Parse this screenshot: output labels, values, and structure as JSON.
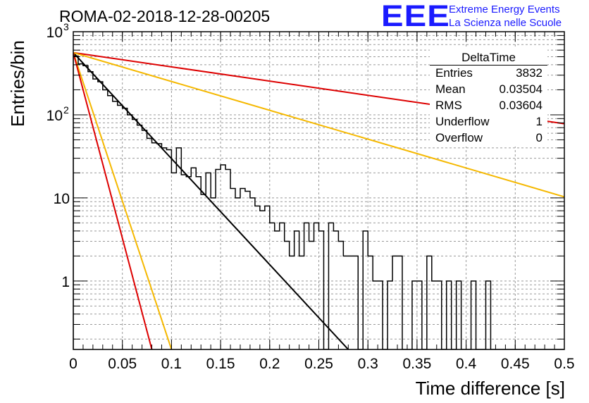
{
  "header": {
    "title": "ROMA-02-2018-12-28-00205",
    "logo_text": "EEE",
    "org_line1": "Extreme Energy Events",
    "org_line2": "La Scienza nelle Scuole",
    "logo_color": "#1a1aff"
  },
  "stats_box": {
    "title": "DeltaTime",
    "rows": [
      {
        "key": "Entries",
        "value": "3832"
      },
      {
        "key": "Mean",
        "value": "0.03504"
      },
      {
        "key": "RMS",
        "value": "0.03604"
      },
      {
        "key": "Underflow",
        "value": "1"
      },
      {
        "key": "Overflow",
        "value": "0"
      }
    ]
  },
  "chart_data": {
    "type": "bar",
    "title": "ROMA-02-2018-12-28-00205",
    "xlabel": "Time difference [s]",
    "ylabel": "Entries/bin",
    "xlim": [
      0,
      0.5
    ],
    "ylim": [
      0.15,
      1000
    ],
    "yscale": "log",
    "grid": true,
    "bin_width": 0.005,
    "bin_start": 0,
    "x_ticks": [
      "0",
      "0.05",
      "0.1",
      "0.15",
      "0.2",
      "0.25",
      "0.3",
      "0.35",
      "0.4",
      "0.45",
      "0.5"
    ],
    "x_tick_values": [
      0,
      0.05,
      0.1,
      0.15,
      0.2,
      0.25,
      0.3,
      0.35,
      0.4,
      0.45,
      0.5
    ],
    "y_ticks": [
      {
        "value": 1,
        "label": "1"
      },
      {
        "value": 10,
        "label": "10"
      },
      {
        "value": 100,
        "label": "10",
        "exp": "2"
      },
      {
        "value": 1000,
        "label": "10",
        "exp": "3"
      }
    ],
    "histogram": [
      510,
      410,
      390,
      330,
      270,
      250,
      200,
      170,
      145,
      130,
      120,
      100,
      88,
      75,
      65,
      52,
      46,
      45,
      40,
      38,
      20,
      40,
      19,
      18,
      23,
      18,
      11,
      20,
      10,
      22,
      25,
      22,
      13,
      10,
      13,
      12,
      10,
      8,
      7,
      8,
      5,
      4,
      5,
      3,
      2,
      4,
      2,
      5,
      3,
      5,
      4,
      0,
      5,
      4,
      3,
      2,
      2,
      2,
      0,
      4,
      2,
      1,
      1,
      0,
      1,
      2,
      2,
      0,
      0,
      1,
      1,
      0,
      2,
      1,
      1,
      0,
      1,
      0,
      1,
      0,
      0,
      1,
      0,
      0,
      1,
      0,
      0,
      0,
      0,
      0,
      0,
      0,
      0,
      0,
      0,
      0,
      0,
      0,
      0,
      0
    ],
    "curves": [
      {
        "color": "#000000",
        "points": [
          [
            0,
            560
          ],
          [
            0.28,
            0.15
          ]
        ]
      },
      {
        "color": "#dd0000",
        "points": [
          [
            0,
            560
          ],
          [
            0.5,
            78
          ]
        ]
      },
      {
        "color": "#f5b800",
        "points": [
          [
            0,
            560
          ],
          [
            0.5,
            10.3
          ]
        ]
      },
      {
        "color": "#f5b800",
        "points": [
          [
            0,
            560
          ],
          [
            0.1,
            0.15
          ]
        ]
      },
      {
        "color": "#dd0000",
        "points": [
          [
            0,
            560
          ],
          [
            0.08,
            0.15
          ]
        ]
      }
    ]
  }
}
